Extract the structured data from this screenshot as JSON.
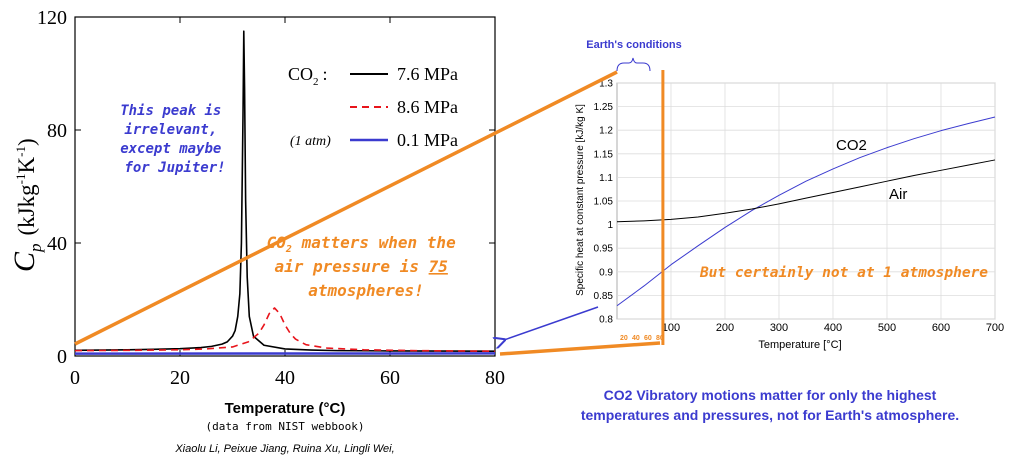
{
  "colors": {
    "accent_orange": "#F08A24",
    "accent_blue": "#3B3BCF",
    "black": "#000000",
    "red_dash": "#E8141B",
    "grid": "#dddddd"
  },
  "chart_data": [
    {
      "type": "line",
      "title": "",
      "xlabel": "Temperature (°C)",
      "ylabel": "Cp (kJkg-1K-1)",
      "ylabel_main": "C",
      "ylabel_sub": "p",
      "ylabel_units_pre": "(kJkg",
      "ylabel_units_sup1": "-1",
      "ylabel_units_mid": "K",
      "ylabel_units_sup2": "-1",
      "ylabel_units_post": ")",
      "xlim": [
        0,
        80
      ],
      "ylim": [
        0,
        120
      ],
      "xticks": [
        0,
        20,
        40,
        60,
        80
      ],
      "yticks": [
        0,
        40,
        80,
        120
      ],
      "grid": false,
      "legend_position": "top-right",
      "legend_prefix_main": "CO",
      "legend_prefix_sub": "2",
      "legend_prefix_colon": ":",
      "legend_note": "(1 atm)",
      "series": [
        {
          "name": "7.6 MPa",
          "color": "#000000",
          "dash": "solid",
          "x": [
            0,
            5,
            10,
            15,
            20,
            24,
            26,
            28,
            29,
            30,
            30.5,
            31,
            31.4,
            31.7,
            32,
            32.15,
            32.3,
            32.5,
            32.8,
            33.2,
            34,
            36,
            40,
            45,
            50,
            60,
            70,
            80
          ],
          "y": [
            2.0,
            2.1,
            2.2,
            2.35,
            2.6,
            3.0,
            3.4,
            4.2,
            5.0,
            7.0,
            9.0,
            14.0,
            22.0,
            40.0,
            85.0,
            115.0,
            95.0,
            55.0,
            28.0,
            14.0,
            7.0,
            3.8,
            2.5,
            2.1,
            1.9,
            1.8,
            1.75,
            1.7
          ]
        },
        {
          "name": "8.6 MPa",
          "color": "#E8141B",
          "dash": "dashed",
          "x": [
            0,
            10,
            20,
            25,
            30,
            33,
            35,
            36,
            37,
            38,
            39,
            40,
            41,
            42,
            44,
            48,
            55,
            65,
            80
          ],
          "y": [
            1.9,
            2.0,
            2.2,
            2.5,
            3.2,
            5.0,
            8.0,
            11.0,
            15.0,
            17.0,
            15.0,
            11.0,
            8.0,
            6.0,
            4.0,
            2.8,
            2.2,
            1.9,
            1.7
          ]
        },
        {
          "name": "0.1 MPa",
          "color": "#3B3BCF",
          "dash": "solid",
          "x": [
            0,
            80
          ],
          "y": [
            0.83,
            0.93
          ]
        }
      ],
      "annotations": {
        "peak_note": "This peak is irrelevant, except maybe for Jupiter!",
        "co2_note_pre": "CO",
        "co2_note_sub": "2",
        "co2_note_post": "matters when the air pressure is",
        "co2_note_value": "75",
        "co2_note_tail": "atmospheres!",
        "source": "(data from NIST webbook)",
        "authors": "Xiaolu Li, Peixue Jiang, Ruina Xu, Lingli Wei,"
      }
    },
    {
      "type": "line",
      "title": "",
      "xlabel": "Temperature [°C]",
      "ylabel": "Specific heat at constant pressure [kJ/kg K]",
      "xlim": [
        0,
        700
      ],
      "ylim": [
        0.8,
        1.3
      ],
      "xticks": [
        100,
        200,
        300,
        400,
        500,
        600,
        700
      ],
      "yticks": [
        0.8,
        0.85,
        0.9,
        0.95,
        1.0,
        1.05,
        1.1,
        1.15,
        1.2,
        1.25,
        1.3
      ],
      "ytick_labels": [
        "0.8",
        "0.85",
        "0.9",
        "0.95",
        "1",
        "1.05",
        "1.1",
        "1.15",
        "1.2",
        "1.25",
        "1.3"
      ],
      "grid": true,
      "series": [
        {
          "name": "CO2",
          "color": "#3B3BCF",
          "x": [
            0,
            50,
            100,
            150,
            200,
            250,
            300,
            350,
            400,
            450,
            500,
            550,
            600,
            650,
            700
          ],
          "y": [
            0.828,
            0.87,
            0.915,
            0.955,
            0.994,
            1.03,
            1.062,
            1.092,
            1.118,
            1.142,
            1.163,
            1.182,
            1.199,
            1.214,
            1.228
          ]
        },
        {
          "name": "Air",
          "color": "#000000",
          "x": [
            0,
            50,
            100,
            150,
            200,
            250,
            300,
            350,
            400,
            450,
            500,
            550,
            600,
            650,
            700
          ],
          "y": [
            1.006,
            1.008,
            1.011,
            1.016,
            1.024,
            1.033,
            1.044,
            1.056,
            1.068,
            1.08,
            1.092,
            1.104,
            1.115,
            1.126,
            1.137
          ]
        }
      ],
      "orange_marker_x": 85,
      "annotations": {
        "earth_conditions": "Earth's conditions",
        "small_ticks": [
          "20",
          "40",
          "60",
          "80"
        ],
        "not_at_1atm": "But certainly not at 1 atmosphere"
      }
    }
  ],
  "conclusion": {
    "line1": "CO2 Vibratory motions matter for only the highest",
    "line2": "temperatures and pressures, not for Earth's atmosphere."
  }
}
